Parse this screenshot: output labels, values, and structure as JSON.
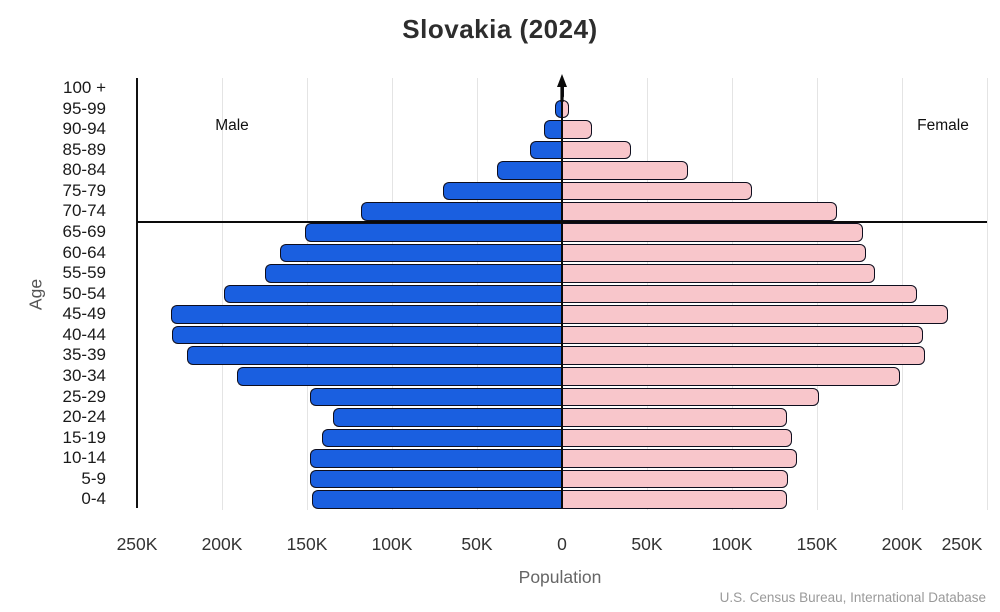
{
  "title": "Slovakia (2024)",
  "annotations": {
    "male": "Male",
    "female": "Female"
  },
  "axis": {
    "xlabel": "Population",
    "ylabel": "Age"
  },
  "source": "U.S. Census Bureau, International Database",
  "colors": {
    "male_fill": "#1a5fe0",
    "female_fill": "#f8c6cb",
    "bar_outline": "#0e0e1e",
    "gridline": "#e4e4e4",
    "axis_line": "#111111"
  },
  "chart_data": {
    "type": "bar",
    "subtype": "population_pyramid",
    "title": "Slovakia (2024)",
    "xlabel": "Population",
    "ylabel": "Age",
    "categories_top_to_bottom": [
      "100 +",
      "95-99",
      "90-94",
      "85-89",
      "80-84",
      "75-79",
      "70-74",
      "65-69",
      "60-64",
      "55-59",
      "50-54",
      "45-49",
      "40-44",
      "35-39",
      "30-34",
      "25-29",
      "20-24",
      "15-19",
      "10-14",
      "5-9",
      "0-4"
    ],
    "series": [
      {
        "name": "Male",
        "side": "left",
        "color": "#1a5fe0",
        "values": [
          600,
          4100,
          10400,
          18800,
          38400,
          69800,
          118200,
          151000,
          166000,
          174700,
          198800,
          230200,
          229600,
          220400,
          191000,
          148200,
          134500,
          141400,
          148200,
          148200,
          147200
        ]
      },
      {
        "name": "Female",
        "side": "right",
        "color": "#f8c6cb",
        "values": [
          1000,
          4300,
          17500,
          40600,
          74300,
          111600,
          161600,
          177200,
          178600,
          184100,
          208600,
          227200,
          212500,
          213500,
          198800,
          151400,
          132200,
          135100,
          138000,
          133100,
          132200
        ]
      }
    ],
    "x_ticks_persons": [
      -250000,
      -200000,
      -150000,
      -100000,
      -50000,
      0,
      50000,
      100000,
      150000,
      200000,
      250000
    ],
    "x_tick_labels": [
      "250K",
      "200K",
      "150K",
      "100K",
      "50K",
      "0",
      "50K",
      "100K",
      "150K",
      "200K",
      "250K"
    ],
    "xlim": [
      -250000,
      250000
    ],
    "grid": true,
    "reference_line_at_boundary_between": [
      "70-74",
      "65-69"
    ],
    "legend_position": "in-plot text annotations (Male left, Female right)",
    "source": "U.S. Census Bureau, International Database"
  }
}
